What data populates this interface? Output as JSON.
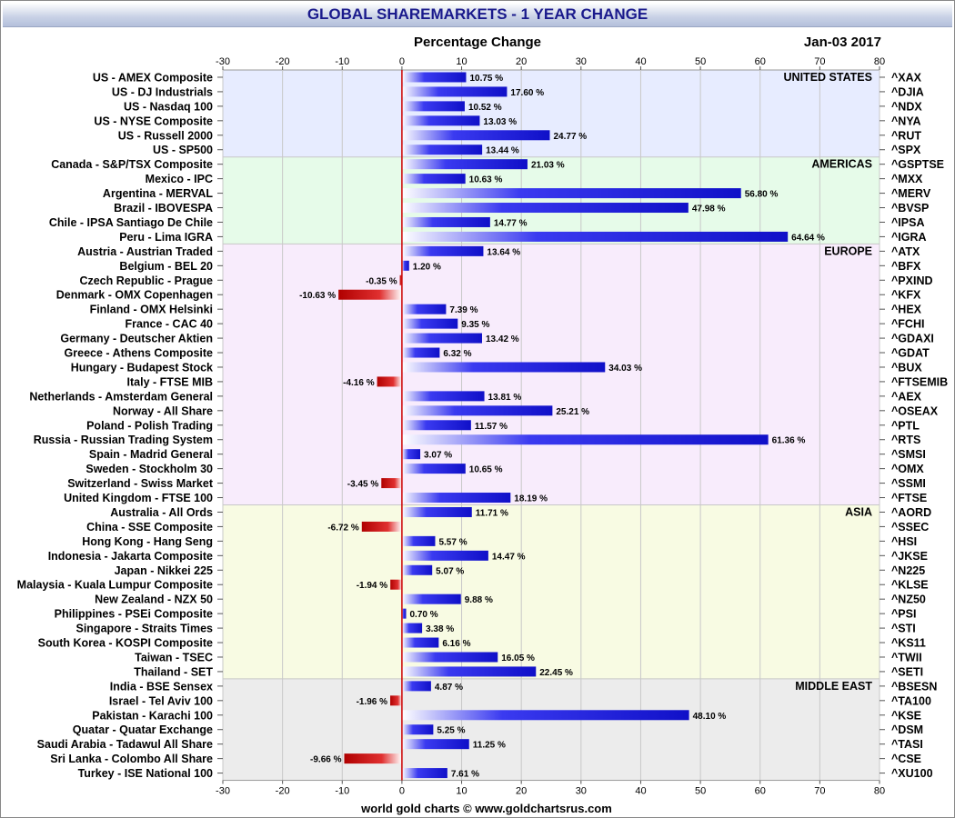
{
  "header": {
    "title": "GLOBAL SHAREMARKETS - 1 YEAR CHANGE",
    "date": "Jan-03  2017"
  },
  "footer": {
    "credit": "world gold charts © www.goldchartsrus.com"
  },
  "colors": {
    "positive_bar": "#1e1ee6",
    "negative_bar": "#d21414",
    "zero_line": "#cc0000",
    "region_bg": {
      "UNITED STATES": "#e7ecff",
      "AMERICAS": "#e6fbe9",
      "EUROPE": "#f8ecfc",
      "ASIA": "#f8fbe3",
      "MIDDLE EAST": "#ececec"
    }
  },
  "chart_data": {
    "type": "bar",
    "orientation": "horizontal",
    "title": "Percentage Change",
    "xlim": [
      -30,
      80
    ],
    "xticks": [
      -30,
      -20,
      -10,
      0,
      10,
      20,
      30,
      40,
      50,
      60,
      70,
      80
    ],
    "grid": true,
    "regions": [
      {
        "name": "UNITED STATES",
        "start": 0,
        "end": 5
      },
      {
        "name": "AMERICAS",
        "start": 6,
        "end": 11
      },
      {
        "name": "EUROPE",
        "start": 12,
        "end": 29
      },
      {
        "name": "ASIA",
        "start": 30,
        "end": 41
      },
      {
        "name": "MIDDLE EAST",
        "start": 42,
        "end": 48
      }
    ],
    "rows": [
      {
        "label": "US - AMEX Composite",
        "code": "^XAX",
        "value": 10.75
      },
      {
        "label": "US - DJ Industrials",
        "code": "^DJIA",
        "value": 17.6
      },
      {
        "label": "US - Nasdaq 100",
        "code": "^NDX",
        "value": 10.52
      },
      {
        "label": "US - NYSE Composite",
        "code": "^NYA",
        "value": 13.03
      },
      {
        "label": "US - Russell 2000",
        "code": "^RUT",
        "value": 24.77
      },
      {
        "label": "US - SP500",
        "code": "^SPX",
        "value": 13.44
      },
      {
        "label": "Canada - S&P/TSX Composite",
        "code": "^GSPTSE",
        "value": 21.03
      },
      {
        "label": "Mexico - IPC",
        "code": "^MXX",
        "value": 10.63
      },
      {
        "label": "Argentina - MERVAL",
        "code": "^MERV",
        "value": 56.8
      },
      {
        "label": "Brazil - IBOVESPA",
        "code": "^BVSP",
        "value": 47.98
      },
      {
        "label": "Chile - IPSA Santiago De Chile",
        "code": "^IPSA",
        "value": 14.77
      },
      {
        "label": "Peru - Lima IGRA",
        "code": "^IGRA",
        "value": 64.64
      },
      {
        "label": "Austria - Austrian Traded",
        "code": "^ATX",
        "value": 13.64
      },
      {
        "label": "Belgium - BEL 20",
        "code": "^BFX",
        "value": 1.2
      },
      {
        "label": "Czech Republic - Prague",
        "code": "^PXIND",
        "value": -0.35
      },
      {
        "label": "Denmark - OMX Copenhagen",
        "code": "^KFX",
        "value": -10.63
      },
      {
        "label": "Finland - OMX Helsinki",
        "code": "^HEX",
        "value": 7.39
      },
      {
        "label": "France - CAC 40",
        "code": "^FCHI",
        "value": 9.35
      },
      {
        "label": "Germany - Deutscher Aktien",
        "code": "^GDAXI",
        "value": 13.42
      },
      {
        "label": "Greece - Athens Composite",
        "code": "^GDAT",
        "value": 6.32
      },
      {
        "label": "Hungary - Budapest Stock",
        "code": "^BUX",
        "value": 34.03
      },
      {
        "label": "Italy - FTSE MIB",
        "code": "^FTSEMIB",
        "value": -4.16
      },
      {
        "label": "Netherlands - Amsterdam General",
        "code": "^AEX",
        "value": 13.81
      },
      {
        "label": "Norway - All Share",
        "code": "^OSEAX",
        "value": 25.21
      },
      {
        "label": "Poland - Polish Trading",
        "code": "^PTL",
        "value": 11.57
      },
      {
        "label": "Russia - Russian Trading System",
        "code": "^RTS",
        "value": 61.36
      },
      {
        "label": "Spain - Madrid General",
        "code": "^SMSI",
        "value": 3.07
      },
      {
        "label": "Sweden - Stockholm 30",
        "code": "^OMX",
        "value": 10.65
      },
      {
        "label": "Switzerland - Swiss Market",
        "code": "^SSMI",
        "value": -3.45
      },
      {
        "label": "United Kingdom - FTSE 100",
        "code": "^FTSE",
        "value": 18.19
      },
      {
        "label": "Australia - All Ords",
        "code": "^AORD",
        "value": 11.71
      },
      {
        "label": "China - SSE Composite",
        "code": "^SSEC",
        "value": -6.72
      },
      {
        "label": "Hong Kong - Hang Seng",
        "code": "^HSI",
        "value": 5.57
      },
      {
        "label": "Indonesia - Jakarta Composite",
        "code": "^JKSE",
        "value": 14.47
      },
      {
        "label": "Japan - Nikkei 225",
        "code": "^N225",
        "value": 5.07
      },
      {
        "label": "Malaysia - Kuala Lumpur Composite",
        "code": "^KLSE",
        "value": -1.94
      },
      {
        "label": "New Zealand - NZX 50",
        "code": "^NZ50",
        "value": 9.88
      },
      {
        "label": "Philippines - PSEi Composite",
        "code": "^PSI",
        "value": 0.7
      },
      {
        "label": "Singapore - Straits Times",
        "code": "^STI",
        "value": 3.38
      },
      {
        "label": "South Korea - KOSPI Composite",
        "code": "^KS11",
        "value": 6.16
      },
      {
        "label": "Taiwan - TSEC",
        "code": "^TWII",
        "value": 16.05
      },
      {
        "label": "Thailand - SET",
        "code": "^SETI",
        "value": 22.45
      },
      {
        "label": "India - BSE Sensex",
        "code": "^BSESN",
        "value": 4.87
      },
      {
        "label": "Israel - Tel Aviv 100",
        "code": "^TA100",
        "value": -1.96
      },
      {
        "label": "Pakistan - Karachi 100",
        "code": "^KSE",
        "value": 48.1
      },
      {
        "label": "Quatar - Quatar Exchange",
        "code": "^DSM",
        "value": 5.25
      },
      {
        "label": "Saudi Arabia - Tadawul All Share",
        "code": "^TASI",
        "value": 11.25
      },
      {
        "label": "Sri Lanka - Colombo All Share",
        "code": "^CSE",
        "value": -9.66
      },
      {
        "label": "Turkey - ISE National 100",
        "code": "^XU100",
        "value": 7.61
      }
    ]
  }
}
